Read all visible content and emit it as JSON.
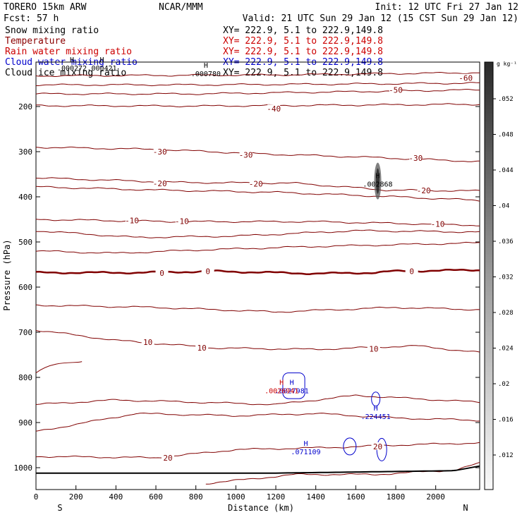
{
  "header": {
    "model": "TORERO  15km ARW",
    "center": "NCAR/MMM",
    "init": "Init: 12 UTC Fri 27 Jan 12",
    "fcst": "Fcst:   57 h",
    "valid": "Valid: 21 UTC Sun 29 Jan 12 (15 CST Sun 29 Jan 12)"
  },
  "legend": [
    {
      "label": "Snow mixing ratio",
      "xy": "XY= 222.9,  5.1 to 222.9,149.8",
      "color": "#000000"
    },
    {
      "label": "Temperature",
      "xy": "XY= 222.9,  5.1 to 222.9,149.8",
      "color": "#8b0000"
    },
    {
      "label": "Rain water mixing ratio",
      "xy": "XY= 222.9,  5.1 to 222.9,149.8",
      "color": "#cc0000"
    },
    {
      "label": "Cloud water mixing ratio",
      "xy": "XY= 222.9,  5.1 to 222.9,149.8",
      "color": "#0000cc"
    },
    {
      "label": "Cloud ice mixing ratio",
      "xy": "XY= 222.9,  5.1 to 222.9,149.8",
      "color": "#000000"
    }
  ],
  "colors": {
    "temperature": "#800000",
    "cloud_water": "#0000cc",
    "rain": "#cc0000",
    "ground": "#000000"
  },
  "chart_data": {
    "type": "cross-section contour",
    "xlabel": "Distance (km)",
    "ylabel": "Pressure (hPa)",
    "xlim": [
      0,
      2220
    ],
    "ylim": [
      1045,
      100
    ],
    "x_ticks": [
      0,
      200,
      400,
      600,
      800,
      1000,
      1200,
      1400,
      1600,
      1800,
      2000
    ],
    "y_ticks": [
      200,
      300,
      400,
      500,
      600,
      700,
      800,
      900,
      1000
    ],
    "x_end_labels": {
      "left": "S",
      "right": "N"
    },
    "colorbar": {
      "unit": "g kg⁻¹",
      "ticks": [
        ".052",
        ".048",
        ".044",
        ".04",
        ".036",
        ".032",
        ".028",
        ".024",
        ".02",
        ".016",
        ".012"
      ]
    },
    "temperature_contours": [
      {
        "value": -60,
        "label_positions": [
          [
            2150,
            137
          ]
        ],
        "points": [
          [
            0,
            132
          ],
          [
            600,
            131
          ],
          [
            1200,
            130
          ],
          [
            2220,
            125
          ]
        ]
      },
      {
        "value": -50,
        "label_positions": [
          [
            1800,
            163
          ]
        ],
        "points": [
          [
            0,
            152
          ],
          [
            800,
            152
          ],
          [
            1600,
            150
          ],
          [
            2220,
            148
          ]
        ]
      },
      {
        "value": -50,
        "points": [
          [
            0,
            172
          ],
          [
            800,
            172
          ],
          [
            1600,
            167
          ],
          [
            2220,
            163
          ]
        ]
      },
      {
        "value": -40,
        "label_positions": [
          [
            1190,
            205
          ]
        ],
        "points": [
          [
            0,
            198
          ],
          [
            800,
            199
          ],
          [
            1500,
            197
          ],
          [
            2220,
            195
          ]
        ]
      },
      {
        "value": -30,
        "label_positions": [
          [
            620,
            300
          ],
          [
            1050,
            307
          ],
          [
            1900,
            314
          ]
        ],
        "points": [
          [
            0,
            290
          ],
          [
            600,
            295
          ],
          [
            1200,
            306
          ],
          [
            1700,
            313
          ],
          [
            2220,
            322
          ]
        ]
      },
      {
        "value": -20,
        "label_positions": [
          [
            620,
            370
          ],
          [
            1100,
            371
          ],
          [
            1940,
            386
          ]
        ],
        "points": [
          [
            0,
            358
          ],
          [
            700,
            368
          ],
          [
            1300,
            370
          ],
          [
            1750,
            385
          ],
          [
            2220,
            387
          ]
        ]
      },
      {
        "value": -20,
        "points": [
          [
            0,
            378
          ],
          [
            600,
            385
          ],
          [
            1200,
            390
          ],
          [
            1800,
            400
          ],
          [
            2220,
            408
          ]
        ]
      },
      {
        "value": -10,
        "label_positions": [
          [
            480,
            452
          ],
          [
            730,
            454
          ],
          [
            2010,
            460
          ]
        ],
        "points": [
          [
            0,
            450
          ],
          [
            700,
            455
          ],
          [
            1400,
            455
          ],
          [
            2220,
            463
          ]
        ]
      },
      {
        "value": -10,
        "points": [
          [
            0,
            475
          ],
          [
            500,
            490
          ],
          [
            1000,
            487
          ],
          [
            1600,
            475
          ],
          [
            2220,
            478
          ]
        ]
      },
      {
        "value": -10,
        "points": [
          [
            0,
            520
          ],
          [
            400,
            525
          ],
          [
            800,
            518
          ],
          [
            1400,
            510
          ],
          [
            2220,
            502
          ]
        ]
      },
      {
        "value": 0,
        "label_positions": [
          [
            630,
            569
          ],
          [
            860,
            565
          ],
          [
            1880,
            565
          ]
        ],
        "points": [
          [
            0,
            568
          ],
          [
            500,
            568
          ],
          [
            900,
            565
          ],
          [
            1400,
            570
          ],
          [
            1700,
            568
          ],
          [
            1780,
            565
          ],
          [
            2220,
            562
          ]
        ]
      },
      {
        "value": 10,
        "label_positions": [
          [
            560,
            722
          ],
          [
            830,
            734
          ],
          [
            1690,
            737
          ]
        ],
        "points": [
          [
            0,
            640
          ],
          [
            600,
            645
          ],
          [
            1200,
            655
          ],
          [
            1800,
            645
          ],
          [
            2220,
            650
          ]
        ]
      },
      {
        "value": 10,
        "points": [
          [
            0,
            695
          ],
          [
            400,
            718
          ],
          [
            900,
            735
          ],
          [
            1400,
            738
          ],
          [
            1900,
            730
          ],
          [
            2220,
            745
          ]
        ]
      },
      {
        "value": 10,
        "points": [
          [
            0,
            860
          ],
          [
            400,
            850
          ],
          [
            800,
            855
          ],
          [
            1200,
            860
          ],
          [
            1600,
            840
          ],
          [
            2220,
            855
          ]
        ]
      },
      {
        "value": 10,
        "points": [
          [
            0,
            920
          ],
          [
            500,
            880
          ],
          [
            1000,
            885
          ],
          [
            1400,
            880
          ],
          [
            1800,
            890
          ],
          [
            2220,
            895
          ]
        ]
      },
      {
        "value": 20,
        "label_positions": [
          [
            660,
            978
          ],
          [
            1710,
            953
          ]
        ],
        "points": [
          [
            0,
            975
          ],
          [
            600,
            978
          ],
          [
            1000,
            960
          ],
          [
            1500,
            955
          ],
          [
            1800,
            950
          ],
          [
            2220,
            945
          ]
        ]
      },
      {
        "value": 20,
        "points": [
          [
            850,
            1035
          ],
          [
            1300,
            1015
          ],
          [
            1700,
            1015
          ],
          [
            2100,
            1005
          ],
          [
            2220,
            990
          ]
        ]
      }
    ],
    "cloud_water_maxima": [
      {
        "x": 1280,
        "p": 823,
        "value": ".0027981"
      },
      {
        "x": 1700,
        "p": 880,
        "value": ".224451"
      },
      {
        "x": 1350,
        "p": 958,
        "value": ".071109"
      }
    ],
    "rain_maxima": [
      {
        "x": 1250,
        "p": 823,
        "value": ".0026941"
      }
    ],
    "snow_maxima": [
      {
        "x": 1710,
        "p": 365,
        "value": ".002868"
      }
    ],
    "ice_maxima": [
      {
        "x": 180,
        "p": 108,
        "value": ".000272"
      },
      {
        "x": 330,
        "p": 108,
        "value": ".000421"
      },
      {
        "x": 850,
        "p": 120,
        "value": ".000780"
      }
    ]
  }
}
